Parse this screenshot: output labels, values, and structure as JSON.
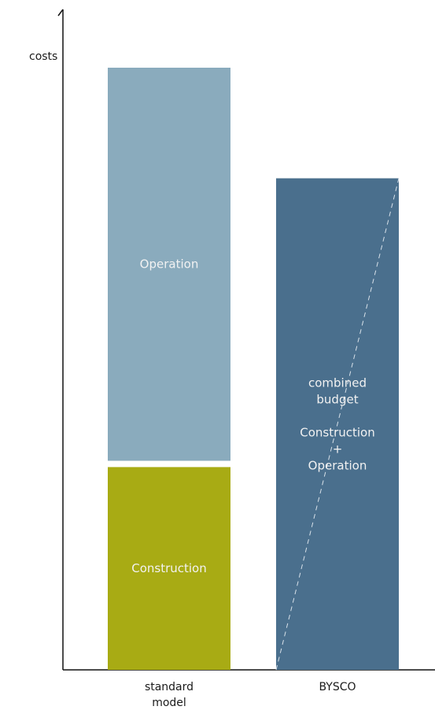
{
  "chart_data": {
    "type": "bar",
    "stacked": true,
    "ylabel": "costs",
    "xlabel": "",
    "ylim": [
      0,
      100
    ],
    "grid": false,
    "legend": "none",
    "categories": [
      {
        "lines": [
          "standard",
          "model"
        ]
      },
      {
        "lines": [
          "BYSCO"
        ]
      }
    ],
    "bars": [
      {
        "category_index": 0,
        "segments": [
          {
            "name": "Construction",
            "value": 33,
            "color": "#a8ab14",
            "label_lines": [
              "Construction"
            ]
          },
          {
            "name": "Operation",
            "value": 65,
            "color": "#8aabbd",
            "label_lines": [
              "Operation"
            ]
          }
        ]
      },
      {
        "category_index": 1,
        "segments": [
          {
            "name": "combined budget",
            "value": 80,
            "color": "#4a6f8d",
            "hatch_diagonal": true,
            "label_lines": [
              "combined",
              "budget",
              "",
              "Construction",
              "+",
              "Operation"
            ]
          }
        ]
      }
    ],
    "colors": {
      "axis": "#111111",
      "divider": "#ffffff",
      "dashed_line": "#d9e2ea"
    }
  }
}
